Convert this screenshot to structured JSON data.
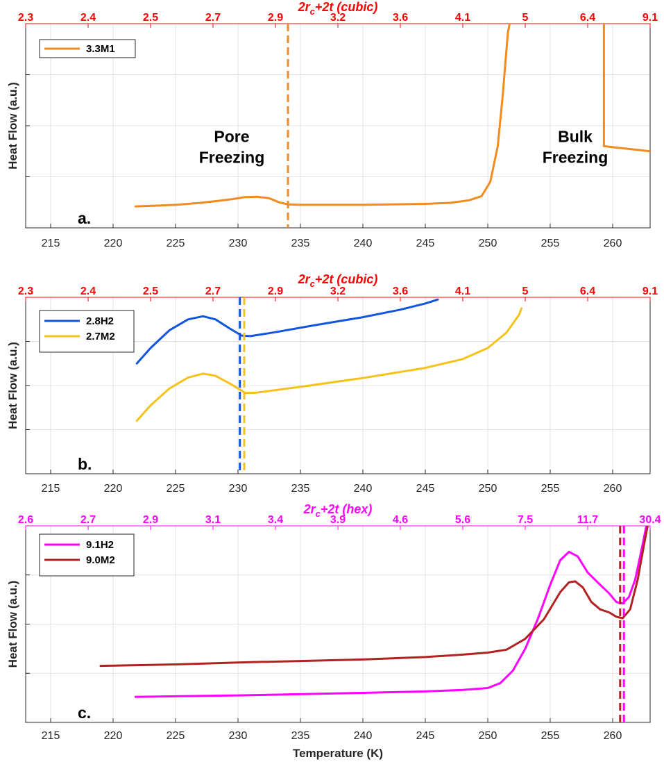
{
  "chart_data": [
    {
      "type": "line",
      "panel_label": "a.",
      "top_axis_title": "2r_c+2t (cubic)",
      "top_axis_color": "#ff0000",
      "top_ticks": [
        "2.3",
        "2.4",
        "2.5",
        "2.7",
        "2.9",
        "3.2",
        "3.6",
        "4.1",
        "5",
        "6.4",
        "9.1"
      ],
      "xlabel": "",
      "ylabel": "Heat Flow (a.u.)",
      "x_ticks": [
        215,
        220,
        225,
        230,
        235,
        240,
        245,
        250,
        255,
        260
      ],
      "xlim": [
        213,
        263
      ],
      "ylim": [
        0,
        4
      ],
      "annotations": [
        {
          "text": [
            "Pore",
            "Freezing"
          ],
          "x": 229.5,
          "y": 1.3
        },
        {
          "text": [
            "Bulk",
            "Freezing"
          ],
          "x": 257,
          "y": 1.3
        }
      ],
      "vlines": [
        {
          "x": 234.0,
          "color": "#f28a1e"
        }
      ],
      "series": [
        {
          "name": "3.3M1",
          "color": "#f28a1e",
          "segments": [
            [
              [
                221.8,
                0.42
              ],
              [
                223,
                0.43
              ],
              [
                225,
                0.45
              ],
              [
                227,
                0.49
              ],
              [
                228.5,
                0.53
              ],
              [
                229.5,
                0.56
              ],
              [
                230.5,
                0.6
              ],
              [
                231.5,
                0.61
              ],
              [
                232.5,
                0.58
              ],
              [
                233.3,
                0.5
              ],
              [
                234,
                0.46
              ],
              [
                235,
                0.45
              ],
              [
                240,
                0.45
              ],
              [
                245,
                0.47
              ],
              [
                247,
                0.49
              ],
              [
                248.5,
                0.54
              ],
              [
                249.5,
                0.62
              ],
              [
                250.2,
                0.9
              ],
              [
                250.8,
                1.6
              ],
              [
                251.2,
                2.6
              ],
              [
                251.6,
                3.8
              ],
              [
                251.75,
                4.0
              ]
            ],
            [
              [
                259.3,
                4.0
              ],
              [
                259.3,
                1.6
              ],
              [
                263,
                1.5
              ]
            ]
          ]
        }
      ]
    },
    {
      "type": "line",
      "panel_label": "b.",
      "top_axis_title": "2r_c+2t (cubic)",
      "top_axis_color": "#ff0000",
      "top_ticks": [
        "2.3",
        "2.4",
        "2.5",
        "2.7",
        "2.9",
        "3.2",
        "3.6",
        "4.1",
        "5",
        "6.4",
        "9.1"
      ],
      "xlabel": "",
      "ylabel": "Heat Flow (a.u.)",
      "x_ticks": [
        215,
        220,
        225,
        230,
        235,
        240,
        245,
        250,
        255,
        260
      ],
      "xlim": [
        213,
        263
      ],
      "ylim": [
        0,
        4
      ],
      "vlines": [
        {
          "x": 230.15,
          "color": "#1155dd"
        },
        {
          "x": 230.5,
          "color": "#f5c21b"
        }
      ],
      "series": [
        {
          "name": "2.8H2",
          "color": "#1155dd",
          "segments": [
            [
              [
                221.9,
                2.5
              ],
              [
                223,
                2.85
              ],
              [
                224.5,
                3.25
              ],
              [
                226,
                3.5
              ],
              [
                227.2,
                3.57
              ],
              [
                228.2,
                3.5
              ],
              [
                229.3,
                3.3
              ],
              [
                230.3,
                3.13
              ],
              [
                231,
                3.12
              ],
              [
                233,
                3.21
              ],
              [
                236,
                3.36
              ],
              [
                240,
                3.55
              ],
              [
                243,
                3.72
              ],
              [
                245,
                3.86
              ],
              [
                246,
                3.95
              ]
            ]
          ]
        },
        {
          "name": "2.7M2",
          "color": "#f5c21b",
          "segments": [
            [
              [
                221.9,
                1.2
              ],
              [
                223,
                1.55
              ],
              [
                224.5,
                1.93
              ],
              [
                226,
                2.18
              ],
              [
                227.2,
                2.27
              ],
              [
                228.2,
                2.22
              ],
              [
                229.5,
                2.02
              ],
              [
                230.6,
                1.83
              ],
              [
                231.5,
                1.84
              ],
              [
                235,
                1.97
              ],
              [
                240,
                2.17
              ],
              [
                245,
                2.4
              ],
              [
                248,
                2.6
              ],
              [
                250,
                2.85
              ],
              [
                251.5,
                3.2
              ],
              [
                252.5,
                3.6
              ],
              [
                252.7,
                3.75
              ]
            ]
          ]
        }
      ]
    },
    {
      "type": "line",
      "panel_label": "c.",
      "top_axis_title": "2r_c+2t (hex)",
      "top_axis_color": "#ff00ff",
      "top_ticks": [
        "2.6",
        "2.7",
        "2.9",
        "3.1",
        "3.4",
        "3.9",
        "4.6",
        "5.6",
        "7.5",
        "11.7",
        "30.4"
      ],
      "xlabel": "Temperature (K)",
      "ylabel": "Heat Flow (a.u.)",
      "x_ticks": [
        215,
        220,
        225,
        230,
        235,
        240,
        245,
        250,
        255,
        260
      ],
      "xlim": [
        213,
        263
      ],
      "ylim": [
        0,
        4
      ],
      "vlines": [
        {
          "x": 260.6,
          "color": "#b22222"
        },
        {
          "x": 260.9,
          "color": "#ff00ff"
        }
      ],
      "series": [
        {
          "name": "9.1H2",
          "color": "#ff00ff",
          "segments": [
            [
              [
                221.8,
                0.52
              ],
              [
                230,
                0.55
              ],
              [
                240,
                0.6
              ],
              [
                245,
                0.63
              ],
              [
                248,
                0.66
              ],
              [
                250,
                0.7
              ],
              [
                251,
                0.8
              ],
              [
                252,
                1.05
              ],
              [
                253,
                1.5
              ],
              [
                254,
                2.1
              ],
              [
                255,
                2.8
              ],
              [
                255.8,
                3.3
              ],
              [
                256.5,
                3.47
              ],
              [
                257.2,
                3.38
              ],
              [
                258,
                3.05
              ],
              [
                259,
                2.8
              ],
              [
                259.7,
                2.63
              ],
              [
                260.3,
                2.45
              ],
              [
                260.8,
                2.42
              ],
              [
                261.3,
                2.55
              ],
              [
                261.8,
                2.9
              ],
              [
                262.3,
                3.5
              ],
              [
                262.7,
                4.0
              ]
            ]
          ]
        },
        {
          "name": "9.0M2",
          "color": "#b22222",
          "segments": [
            [
              [
                219,
                1.15
              ],
              [
                225,
                1.18
              ],
              [
                230,
                1.22
              ],
              [
                235,
                1.25
              ],
              [
                240,
                1.28
              ],
              [
                245,
                1.33
              ],
              [
                248,
                1.38
              ],
              [
                250,
                1.42
              ],
              [
                251.5,
                1.48
              ],
              [
                253,
                1.7
              ],
              [
                254.5,
                2.1
              ],
              [
                255.8,
                2.65
              ],
              [
                256.5,
                2.85
              ],
              [
                257,
                2.87
              ],
              [
                257.6,
                2.75
              ],
              [
                258.3,
                2.45
              ],
              [
                259,
                2.3
              ],
              [
                259.7,
                2.24
              ],
              [
                260.3,
                2.15
              ],
              [
                260.8,
                2.12
              ],
              [
                261.4,
                2.3
              ],
              [
                262,
                2.9
              ],
              [
                262.5,
                3.6
              ],
              [
                262.8,
                4.0
              ]
            ]
          ]
        }
      ]
    }
  ]
}
